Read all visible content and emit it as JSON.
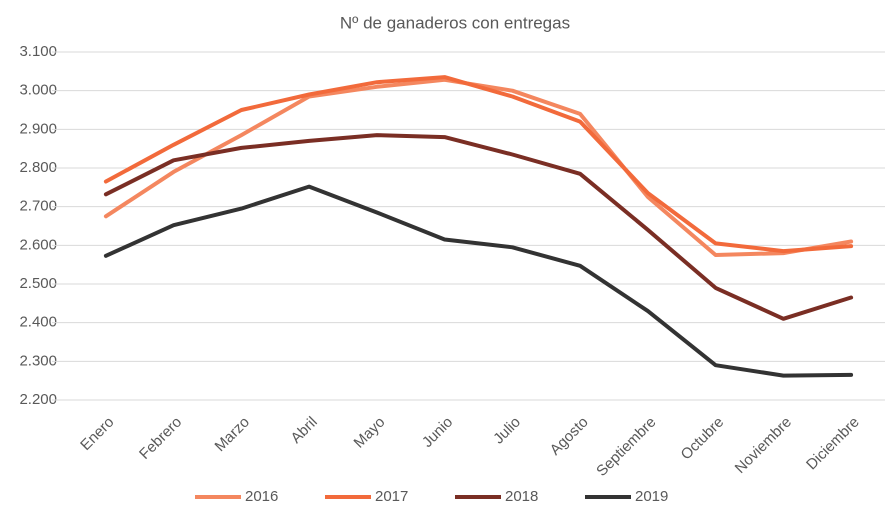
{
  "chart_data": {
    "type": "line",
    "title": "Nº de ganaderos con entregas",
    "categories": [
      "Enero",
      "Febrero",
      "Marzo",
      "Abril",
      "Mayo",
      "Junio",
      "Julio",
      "Agosto",
      "Septiembre",
      "Octubre",
      "Noviembre",
      "Diciembre"
    ],
    "series": [
      {
        "name": "2016",
        "color": "#f4875f",
        "values": [
          2675,
          2790,
          2885,
          2985,
          3010,
          3028,
          3000,
          2940,
          2725,
          2575,
          2580,
          2610
        ]
      },
      {
        "name": "2017",
        "color": "#f26a3b",
        "values": [
          2765,
          2860,
          2950,
          2990,
          3022,
          3035,
          2985,
          2920,
          2735,
          2605,
          2585,
          2598
        ]
      },
      {
        "name": "2018",
        "color": "#7a2e24",
        "values": [
          2732,
          2820,
          2852,
          2870,
          2885,
          2880,
          2835,
          2785,
          2640,
          2490,
          2410,
          2465
        ]
      },
      {
        "name": "2019",
        "color": "#333333",
        "values": [
          2573,
          2652,
          2695,
          2752,
          2685,
          2615,
          2595,
          2547,
          2430,
          2290,
          2263,
          2265
        ]
      }
    ],
    "ylim": [
      2200,
      3100
    ],
    "yticks": [
      {
        "value": 2200,
        "label": "2.200"
      },
      {
        "value": 2300,
        "label": "2.300"
      },
      {
        "value": 2400,
        "label": "2.400"
      },
      {
        "value": 2500,
        "label": "2.500"
      },
      {
        "value": 2600,
        "label": "2.600"
      },
      {
        "value": 2700,
        "label": "2.700"
      },
      {
        "value": 2800,
        "label": "2.800"
      },
      {
        "value": 2900,
        "label": "2.900"
      },
      {
        "value": 3000,
        "label": "3.000"
      },
      {
        "value": 3100,
        "label": "3.100"
      }
    ],
    "grid": true,
    "legend": "bottom"
  }
}
